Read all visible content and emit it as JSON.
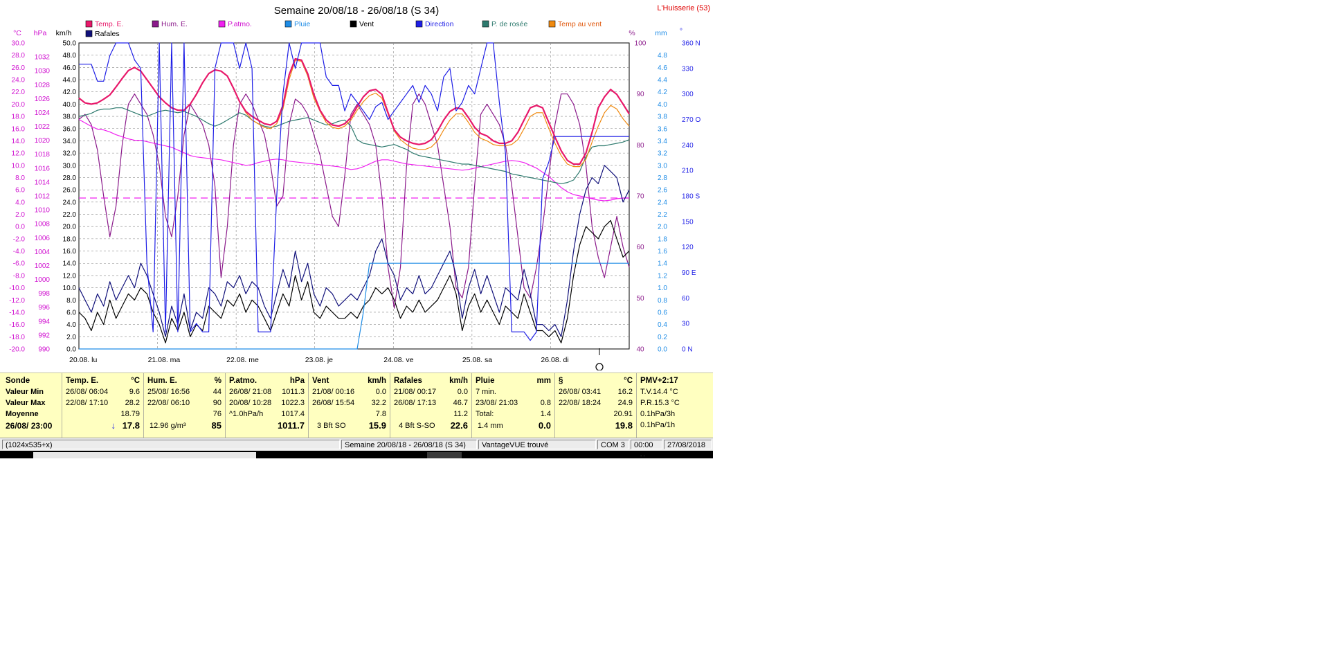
{
  "window": {
    "title": "Semaine 20/08/18 - 26/08/18 (S 34)",
    "station": "L'Huisserie (53)"
  },
  "legend": [
    {
      "label": "Temp. E.",
      "color": "#e8186a",
      "text_color": "#e8186a"
    },
    {
      "label": "Hum. E.",
      "color": "#8b1a8b",
      "text_color": "#8b1a8b"
    },
    {
      "label": "P.atmo.",
      "color": "#f020f0",
      "text_color": "#d010d0"
    },
    {
      "label": "Pluie",
      "color": "#1e8ce6",
      "text_color": "#1e8ce6"
    },
    {
      "label": "Vent",
      "color": "#000000",
      "text_color": "#000000"
    },
    {
      "label": "Direction",
      "color": "#1e1ee6",
      "text_color": "#1e1ee6"
    },
    {
      "label": "P. de rosée",
      "color": "#2e7a6e",
      "text_color": "#2e7a6e"
    },
    {
      "label": "Temp au vent",
      "color": "#f08a10",
      "text_color": "#e05a10"
    },
    {
      "label": "Rafales",
      "color": "#10107a",
      "text_color": "#000000"
    }
  ],
  "chart_data": {
    "type": "line",
    "unit_headers": {
      "temp": "°C",
      "pressure": "hPa",
      "wind": "km/h",
      "hum": "%",
      "rain": "mm",
      "dir": "°"
    },
    "axes": {
      "temp": {
        "range": [
          -20,
          30
        ],
        "ticks": [
          "30.0",
          "28.0",
          "26.0",
          "24.0",
          "22.0",
          "20.0",
          "18.0",
          "16.0",
          "14.0",
          "12.0",
          "10.0",
          "8.0",
          "6.0",
          "4.0",
          "2.0",
          "0.0",
          "-2.0",
          "-4.0",
          "-6.0",
          "-8.0",
          "-10.0",
          "-12.0",
          "-14.0",
          "-16.0",
          "-18.0",
          "-20.0"
        ]
      },
      "pressure": {
        "range": [
          990,
          1034
        ],
        "ticks": [
          "1032",
          "1030",
          "1028",
          "1026",
          "1024",
          "1022",
          "1020",
          "1018",
          "1016",
          "1014",
          "1012",
          "1010",
          "1008",
          "1006",
          "1004",
          "1002",
          "1000",
          "998",
          "996",
          "994",
          "992",
          "990"
        ]
      },
      "wind": {
        "range": [
          0,
          50
        ],
        "ticks": [
          "50.0",
          "48.0",
          "46.0",
          "44.0",
          "42.0",
          "40.0",
          "38.0",
          "36.0",
          "34.0",
          "32.0",
          "30.0",
          "28.0",
          "26.0",
          "24.0",
          "22.0",
          "20.0",
          "18.0",
          "16.0",
          "14.0",
          "12.0",
          "10.0",
          "8.0",
          "6.0",
          "4.0",
          "2.0",
          "0.0"
        ]
      },
      "hum": {
        "range": [
          40,
          100
        ],
        "ticks": [
          "100",
          "90",
          "80",
          "70",
          "60",
          "50",
          "40"
        ]
      },
      "rain": {
        "range": [
          0,
          5
        ],
        "ticks": [
          "4.8",
          "4.6",
          "4.4",
          "4.2",
          "4.0",
          "3.8",
          "3.6",
          "3.4",
          "3.2",
          "3.0",
          "2.8",
          "2.6",
          "2.4",
          "2.2",
          "2.0",
          "1.8",
          "1.6",
          "1.4",
          "1.2",
          "1.0",
          "0.8",
          "0.6",
          "0.4",
          "0.2",
          "0.0"
        ]
      },
      "dir": {
        "range": [
          0,
          360
        ],
        "ticks": [
          "360 N",
          "330",
          "300",
          "270 O",
          "240",
          "210",
          "180 S",
          "150",
          "120",
          "90  E",
          "60",
          "30",
          "0   N"
        ]
      }
    },
    "x_labels": [
      "20.08.   lu",
      "21.08.   ma",
      "22.08.   me",
      "23.08.   je",
      "24.08.   ve",
      "25.08.   sa",
      "26.08.   di"
    ],
    "pressure_mean": 1011.7,
    "series": [
      {
        "name": "Hum. E.",
        "axis": "hum",
        "color": "#8b1a8b",
        "values": [
          85,
          86,
          84,
          79,
          70,
          62,
          68,
          80,
          88,
          90,
          88,
          86,
          82,
          76,
          66,
          62,
          70,
          82,
          88,
          86,
          84,
          80,
          72,
          54,
          64,
          80,
          88,
          90,
          88,
          85,
          82,
          76,
          68,
          70,
          84,
          89,
          88,
          86,
          82,
          78,
          72,
          66,
          64,
          74,
          86,
          88,
          86,
          84,
          80,
          70,
          56,
          48,
          56,
          76,
          88,
          90,
          88,
          84,
          80,
          72,
          64,
          52,
          50,
          56,
          72,
          86,
          88,
          86,
          84,
          80,
          72,
          62,
          52,
          50,
          56,
          64,
          74,
          84,
          90,
          90,
          88,
          84,
          76,
          64,
          58,
          54,
          60,
          66,
          60,
          56
        ]
      },
      {
        "name": "P.atmo.",
        "axis": "pressure",
        "color": "#f020f0",
        "values": [
          1023,
          1022.5,
          1022,
          1021.6,
          1021.5,
          1021.2,
          1020.8,
          1020.5,
          1020.2,
          1020,
          1020,
          1019.8,
          1019.6,
          1019.4,
          1019.2,
          1019,
          1018.6,
          1018.2,
          1017.8,
          1017.6,
          1017.5,
          1017.4,
          1017.3,
          1017.2,
          1017,
          1016.8,
          1016.6,
          1016.4,
          1016.5,
          1016.8,
          1017,
          1017.2,
          1017.3,
          1017.2,
          1017,
          1016.9,
          1016.8,
          1016.7,
          1016.6,
          1016.5,
          1016.4,
          1016.3,
          1016.2,
          1016,
          1015.8,
          1015.9,
          1016.2,
          1016.6,
          1017,
          1017.2,
          1017.2,
          1017,
          1016.8,
          1016.6,
          1016.5,
          1016.4,
          1016.3,
          1016.2,
          1016.1,
          1016,
          1015.9,
          1015.8,
          1015.7,
          1015.8,
          1016,
          1016.2,
          1016.4,
          1016.6,
          1016.8,
          1017,
          1017.1,
          1017,
          1016.8,
          1016.4,
          1016,
          1015.4,
          1014.8,
          1014,
          1013.2,
          1012.6,
          1012.2,
          1012,
          1011.8,
          1011.6,
          1011.4,
          1011.3,
          1011.4,
          1011.6,
          1011.7,
          1011.7
        ]
      },
      {
        "name": "P. de rosée",
        "axis": "temp",
        "color": "#2e7a6e",
        "values": [
          18,
          18.2,
          18.5,
          19,
          19.2,
          19.2,
          19.4,
          19.4,
          19,
          18.6,
          18.2,
          18,
          18.4,
          18.8,
          19,
          18.8,
          18.6,
          18.8,
          18.4,
          18,
          17.4,
          16.8,
          16.4,
          16.8,
          17.4,
          18,
          18.6,
          18.2,
          17.4,
          16.8,
          16.4,
          16.2,
          16.4,
          16.8,
          17.2,
          17.4,
          17.6,
          17.8,
          17.4,
          17,
          16.6,
          16.8,
          17.2,
          17.4,
          16.4,
          14.2,
          13.6,
          13.4,
          13.2,
          13,
          13.2,
          13.4,
          13,
          12.6,
          12,
          11.6,
          11.4,
          11.2,
          11,
          10.8,
          10.6,
          10.4,
          10.2,
          10.2,
          10,
          9.8,
          9.6,
          9.4,
          9.2,
          9,
          8.6,
          8.4,
          8.2,
          8,
          7.8,
          7.6,
          7.4,
          7.2,
          7,
          7.2,
          7.6,
          9,
          11.4,
          13,
          13.2,
          13.2,
          13.4,
          13.6,
          13.8,
          14.2
        ]
      },
      {
        "name": "Temp au vent",
        "axis": "temp",
        "color": "#f08a10",
        "values": [
          21,
          20.2,
          20,
          20.2,
          20.8,
          21.5,
          22.8,
          24.2,
          25.5,
          26,
          25.4,
          24,
          22.6,
          21.2,
          20.2,
          19.4,
          19,
          19,
          20,
          21.6,
          23.5,
          25,
          25.6,
          25.4,
          24.6,
          22.6,
          20.4,
          18.6,
          17.4,
          16.8,
          16.2,
          16,
          16.8,
          19.2,
          24,
          27.2,
          27,
          24.6,
          21,
          18.8,
          17,
          16.2,
          16,
          16.4,
          17.4,
          19,
          20.4,
          21.4,
          21.8,
          21,
          18.4,
          15.6,
          14.2,
          13.4,
          12.8,
          12.6,
          12.6,
          13,
          14,
          15.8,
          17.4,
          18.4,
          18.4,
          17,
          15.4,
          14.4,
          14,
          13.4,
          13.2,
          13.2,
          13.4,
          14.2,
          16,
          18,
          18.6,
          18.6,
          16,
          13.6,
          11.6,
          10.2,
          9.8,
          9.8,
          11,
          13.8,
          16.4,
          18.6,
          19.8,
          19.2,
          17.6,
          16.4
        ]
      },
      {
        "name": "Temp. E.",
        "axis": "temp",
        "color": "#e8186a",
        "values": [
          21,
          20.2,
          20,
          20.2,
          20.8,
          21.5,
          22.8,
          24.2,
          25.5,
          26,
          25.4,
          24,
          22.6,
          21.2,
          20.2,
          19.4,
          19,
          19,
          20,
          21.6,
          23.5,
          25,
          25.6,
          25.4,
          24.6,
          22.6,
          20.4,
          18.8,
          18,
          17.4,
          16.8,
          16.6,
          17.2,
          19.8,
          24.8,
          27.4,
          27.2,
          25,
          21.6,
          19,
          17.4,
          16.6,
          16.4,
          16.8,
          17.8,
          19.6,
          21.2,
          22.2,
          22.4,
          21.6,
          18.6,
          15.8,
          14.6,
          14,
          13.6,
          13.4,
          13.6,
          14.2,
          15.6,
          17.4,
          18.8,
          19.4,
          19.2,
          17.8,
          16.2,
          15.2,
          14.8,
          14,
          13.6,
          13.6,
          14,
          15.4,
          17.4,
          19.4,
          19.8,
          19.4,
          17,
          14.6,
          12.4,
          10.8,
          10.2,
          10.2,
          12,
          15.4,
          19.4,
          21.2,
          22.4,
          21.6,
          20,
          18.4
        ]
      },
      {
        "name": "Vent",
        "axis": "wind",
        "color": "#000000",
        "values": [
          6,
          5,
          3,
          6,
          4,
          8,
          5,
          7,
          9,
          8,
          10,
          9,
          6,
          4,
          1,
          5,
          3,
          6,
          2,
          4,
          3,
          7,
          6,
          5,
          8,
          7,
          9,
          6,
          8,
          7,
          5,
          3,
          6,
          9,
          7,
          12,
          8,
          11,
          6,
          5,
          7,
          6,
          5,
          5,
          6,
          5,
          7,
          8,
          10,
          9,
          10,
          8,
          5,
          7,
          6,
          8,
          6,
          7,
          8,
          10,
          12,
          9,
          3,
          7,
          9,
          6,
          8,
          6,
          4,
          7,
          6,
          5,
          9,
          6,
          3,
          3,
          2,
          3,
          1,
          5,
          12,
          17,
          20,
          19,
          18,
          20,
          21,
          18,
          15,
          16
        ]
      },
      {
        "name": "Rafales",
        "axis": "wind",
        "color": "#10107a",
        "values": [
          10,
          8,
          6,
          9,
          7,
          11,
          8,
          10,
          12,
          10,
          14,
          12,
          9,
          6,
          2,
          7,
          4,
          9,
          3,
          6,
          5,
          10,
          9,
          7,
          11,
          10,
          12,
          9,
          11,
          10,
          7,
          5,
          9,
          13,
          10,
          16,
          11,
          14,
          9,
          7,
          10,
          9,
          7,
          8,
          9,
          8,
          10,
          12,
          16,
          18,
          14,
          12,
          8,
          10,
          9,
          12,
          9,
          10,
          12,
          14,
          16,
          12,
          5,
          10,
          13,
          9,
          12,
          9,
          6,
          10,
          9,
          8,
          13,
          9,
          4,
          4,
          3,
          4,
          2,
          8,
          16,
          22,
          26,
          28,
          27,
          30,
          29,
          28,
          24,
          26
        ]
      },
      {
        "name": "Direction",
        "axis": "dir",
        "color": "#1e1ee6",
        "values": [
          335,
          335,
          335,
          315,
          315,
          345,
          360,
          360,
          360,
          340,
          330,
          100,
          20,
          360,
          20,
          360,
          20,
          360,
          20,
          30,
          20,
          20,
          330,
          360,
          360,
          360,
          330,
          360,
          330,
          20,
          20,
          20,
          180,
          300,
          360,
          330,
          360,
          360,
          360,
          360,
          320,
          310,
          310,
          280,
          300,
          290,
          280,
          270,
          285,
          290,
          270,
          280,
          290,
          300,
          310,
          290,
          310,
          300,
          280,
          320,
          330,
          280,
          290,
          310,
          300,
          330,
          360,
          360,
          290,
          230,
          20,
          20,
          20,
          10,
          20,
          200,
          220,
          250,
          250,
          250,
          250,
          250,
          250,
          250,
          250,
          250,
          250,
          250,
          250,
          250
        ]
      },
      {
        "name": "Pluie",
        "axis": "rain",
        "color": "#1e8ce6",
        "values": [
          0,
          0,
          0,
          0,
          0,
          0,
          0,
          0,
          0,
          0,
          0,
          0,
          0,
          0,
          0,
          0,
          0,
          0,
          0,
          0,
          0,
          0,
          0,
          0,
          0,
          0,
          0,
          0,
          0,
          0,
          0,
          0,
          0,
          0,
          0,
          0,
          0,
          0,
          0,
          0,
          0,
          0,
          0,
          0,
          0,
          0,
          0.6,
          1.4,
          1.4,
          1.4,
          1.4,
          1.4,
          1.4,
          1.4,
          1.4,
          1.4,
          1.4,
          1.4,
          1.4,
          1.4,
          1.4,
          1.4,
          1.4,
          1.4,
          1.4,
          1.4,
          1.4,
          1.4,
          1.4,
          1.4,
          1.4,
          1.4,
          1.4,
          1.4,
          1.4,
          1.4,
          1.4,
          1.4,
          1.4,
          1.4,
          1.4,
          1.4,
          1.4,
          1.4,
          1.4,
          1.4,
          1.4,
          1.4,
          1.4,
          1.4
        ]
      }
    ]
  },
  "stats": {
    "labels": {
      "title": "Sonde",
      "min": "Valeur Min",
      "max": "Valeur Max",
      "avg": "Moyenne",
      "now": "26/08/ 23:00"
    },
    "temp": {
      "h": "Temp. E.",
      "u": "°C",
      "min_d": "26/08/  06:04",
      "min_v": "9.6",
      "max_d": "22/08/  17:10",
      "max_v": "28.2",
      "avg": "18.79",
      "now_arrow": "↓",
      "now": "17.8"
    },
    "hum": {
      "h": "Hum. E.",
      "u": "%",
      "min_d": "25/08/  16:56",
      "min_v": "44",
      "max_d": "22/08/  06:10",
      "max_v": "90",
      "avg": "76",
      "abs": "12.96 g/m³",
      "now": "85"
    },
    "press": {
      "h": "P.atmo.",
      "u": "hPa",
      "min_d": "26/08/  21:08",
      "min_v": "1011.3",
      "max_d": "20/08/  10:28",
      "max_v": "1022.3",
      "trend": "^1.0hPa/h",
      "avg": "1017.4",
      "now": "1011.7"
    },
    "wind": {
      "h": "Vent",
      "u": "km/h",
      "min_d": "21/08/  00:16",
      "min_v": "0.0",
      "max_d": "26/08/  15:54",
      "max_v": "32.2",
      "avg": "7.8",
      "bft": "3 Bft SO",
      "now": "15.9"
    },
    "gust": {
      "h": "Rafales",
      "u": "km/h",
      "min_d": "21/08/  00:17",
      "min_v": "0.0",
      "max_d": "26/08/  17:13",
      "max_v": "46.7",
      "avg": "11.2",
      "bft": "4 Bft S-SO",
      "now": "22.6"
    },
    "rain": {
      "h": "Pluie",
      "u": "mm",
      "r1": "7 min.",
      "r2_d": "23/08/  21:03",
      "r2_v": "0.8",
      "r3_l": "Total:",
      "r3_v": "1.4",
      "r4_l": "1.4 mm",
      "now": "0.0"
    },
    "s": {
      "h": "§",
      "u": "°C",
      "min_d": "26/08/  03:41",
      "min_v": "16.2",
      "max_d": "22/08/  18:24",
      "max_v": "24.9",
      "avg": "20.91",
      "now": "19.8"
    },
    "pmv": {
      "h": "PMV+2:17",
      "r1": "T.V.14.4 °C",
      "r2": "P.R.15.3 °C",
      "r3": "0.1hPa/3h",
      "r4": "0.1hPa/1h"
    }
  },
  "statusbar": {
    "size": "(1024x535+x)",
    "week": "Semaine 20/08/18 - 26/08/18 (S 34)",
    "device": "VantageVUE trouvé",
    "port": "COM 3",
    "time": "00:00",
    "date": "27/08/2018"
  }
}
